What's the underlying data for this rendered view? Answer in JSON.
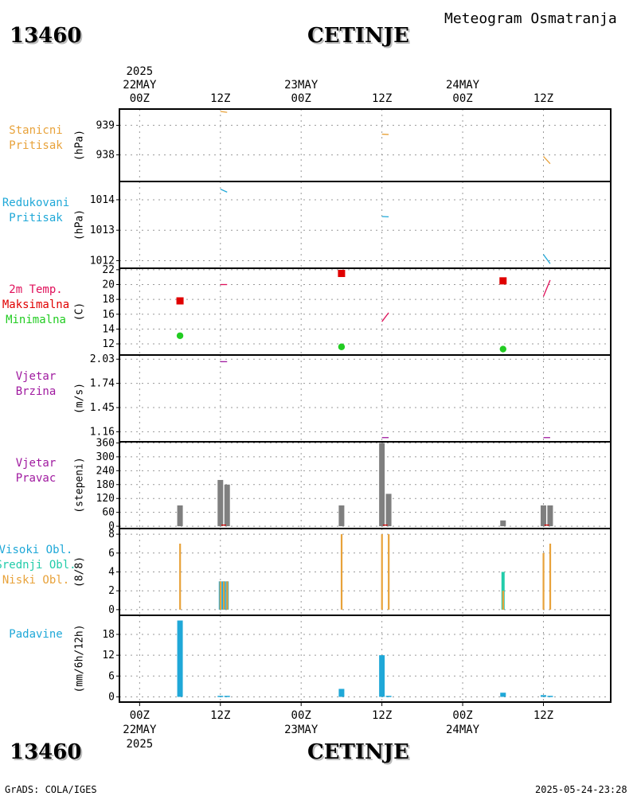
{
  "header": {
    "station_id": "13460",
    "station_name": "CETINJE",
    "subtitle": "Meteogram Osmatranja"
  },
  "footer": {
    "credit": "GrADS: COLA/IGES",
    "timestamp": "2025-05-24-23:28"
  },
  "time_axis": {
    "year": "2025",
    "ticks": [
      {
        "t": 0,
        "top": "00Z",
        "date": "22MAY",
        "year": "2025"
      },
      {
        "t": 12,
        "top": "12Z",
        "date": "",
        "year": ""
      },
      {
        "t": 24,
        "top": "00Z",
        "date": "23MAY",
        "year": ""
      },
      {
        "t": 36,
        "top": "12Z",
        "date": "",
        "year": ""
      },
      {
        "t": 48,
        "top": "00Z",
        "date": "24MAY",
        "year": ""
      },
      {
        "t": 60,
        "top": "12Z",
        "date": "",
        "year": ""
      }
    ],
    "range_hours": [
      -3,
      70
    ]
  },
  "colors": {
    "orange": "#e8a23a",
    "cyan": "#1fa8d8",
    "red": "#e00000",
    "green": "#22cc22",
    "purple": "#a01aa0",
    "gray": "#7f7f7f",
    "teal": "#22ccaa",
    "crimson": "#e0105a",
    "grid": "#999999"
  },
  "chart_data": [
    {
      "type": "line",
      "id": "station-pressure",
      "labels": [
        "Stanicni",
        "Pritisak"
      ],
      "label_colors": [
        "orange",
        "orange"
      ],
      "unit": "(hPa)",
      "yticks": [
        938,
        939
      ],
      "ylim": [
        937.1,
        939.55
      ],
      "color": "orange",
      "segments": [
        [
          [
            12,
            939.47
          ],
          [
            13,
            939.44
          ]
        ],
        [
          [
            36,
            938.7
          ],
          [
            37,
            938.69
          ]
        ],
        [
          [
            60,
            937.95
          ],
          [
            61,
            937.7
          ]
        ]
      ]
    },
    {
      "type": "line",
      "id": "reduced-pressure",
      "labels": [
        "Redukovani",
        "Pritisak"
      ],
      "label_colors": [
        "cyan",
        "cyan"
      ],
      "unit": "(hPa)",
      "yticks": [
        1012,
        1013,
        1014
      ],
      "ylim": [
        1011.75,
        1014.6
      ],
      "color": "cyan",
      "segments": [
        [
          [
            12,
            1014.35
          ],
          [
            13,
            1014.25
          ]
        ],
        [
          [
            36,
            1013.45
          ],
          [
            37,
            1013.44
          ]
        ],
        [
          [
            60,
            1012.2
          ],
          [
            61,
            1011.9
          ]
        ]
      ]
    },
    {
      "type": "scatter",
      "id": "temperature",
      "labels": [
        "2m Temp.",
        "Maksimalna",
        "Minimalna"
      ],
      "label_colors": [
        "crimson",
        "red",
        "green"
      ],
      "unit": "(C)",
      "yticks": [
        12,
        14,
        16,
        18,
        20,
        22
      ],
      "ylim": [
        10.5,
        22.2
      ],
      "line_color": "crimson",
      "segments": [
        [
          [
            12,
            20.0
          ],
          [
            13,
            20.0
          ]
        ],
        [
          [
            36,
            15.0
          ],
          [
            37,
            16.2
          ]
        ],
        [
          [
            60,
            18.4
          ],
          [
            61,
            20.6
          ]
        ]
      ],
      "max": [
        [
          6,
          17.8
        ],
        [
          30,
          21.5
        ],
        [
          54,
          20.5
        ]
      ],
      "min": [
        [
          6,
          13.1
        ],
        [
          30,
          11.6
        ],
        [
          54,
          11.3
        ]
      ]
    },
    {
      "type": "line",
      "id": "wind-speed",
      "labels": [
        "Vjetar",
        "Brzina"
      ],
      "label_colors": [
        "purple",
        "purple"
      ],
      "unit": "(m/s)",
      "yticks": [
        1.16,
        1.45,
        1.74,
        2.03
      ],
      "ylim": [
        1.04,
        2.08
      ],
      "color": "purple",
      "segments": [
        [
          [
            12,
            2.0
          ],
          [
            13,
            2.0
          ]
        ],
        [
          [
            36,
            1.09
          ],
          [
            37,
            1.09
          ]
        ],
        [
          [
            60,
            1.09
          ],
          [
            61,
            1.09
          ]
        ]
      ]
    },
    {
      "type": "bar",
      "id": "wind-direction",
      "labels": [
        "Vjetar",
        "Pravac"
      ],
      "label_colors": [
        "purple",
        "purple"
      ],
      "unit": "(stepeni)",
      "yticks": [
        0,
        60,
        120,
        180,
        240,
        300,
        360
      ],
      "ylim": [
        -10,
        365
      ],
      "color": "gray",
      "bars": [
        [
          6,
          90
        ],
        [
          12,
          200
        ],
        [
          13,
          180
        ],
        [
          30,
          90
        ],
        [
          36,
          360
        ],
        [
          37,
          140
        ],
        [
          54,
          25
        ],
        [
          60,
          90
        ],
        [
          61,
          90
        ]
      ],
      "marks": [
        [
          12.5,
          5
        ],
        [
          36.5,
          5
        ],
        [
          60.5,
          5
        ]
      ]
    },
    {
      "type": "bar",
      "id": "cloud-cover",
      "labels": [
        "Visoki Obl.",
        "Srednji Obl.",
        "Niski Obl."
      ],
      "label_colors": [
        "cyan",
        "teal",
        "orange"
      ],
      "unit": "(8/8)",
      "yticks": [
        0,
        2,
        4,
        6,
        8
      ],
      "ylim": [
        -0.6,
        8.6
      ],
      "low": [
        [
          6,
          7
        ],
        [
          12,
          3
        ],
        [
          12.5,
          3
        ],
        [
          13,
          3
        ],
        [
          30,
          8
        ],
        [
          36,
          8
        ],
        [
          37,
          8
        ],
        [
          54,
          2
        ],
        [
          60,
          6
        ],
        [
          61,
          7
        ]
      ],
      "mid": [
        [
          54,
          4
        ]
      ],
      "high": [
        [
          12,
          3
        ],
        [
          12.5,
          3
        ],
        [
          13,
          3
        ]
      ]
    },
    {
      "type": "bar",
      "id": "precipitation",
      "labels": [
        "Padavine"
      ],
      "label_colors": [
        "cyan"
      ],
      "unit": "(mm/6h/12h)",
      "yticks": [
        0,
        6,
        12,
        18
      ],
      "ylim": [
        -1.5,
        23.5
      ],
      "color": "cyan",
      "bars": [
        [
          6,
          22
        ],
        [
          12,
          0.3
        ],
        [
          13,
          0.3
        ],
        [
          30,
          2.3
        ],
        [
          36,
          12
        ],
        [
          37,
          0.3
        ],
        [
          54,
          1.2
        ],
        [
          60,
          0.5
        ],
        [
          61,
          0.3
        ]
      ]
    }
  ]
}
